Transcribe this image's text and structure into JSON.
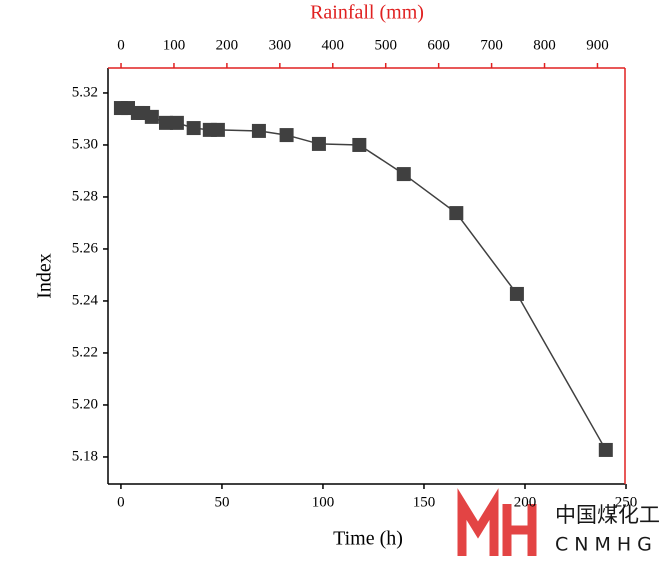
{
  "chart_data": {
    "type": "line",
    "xlabel": "Time (h)",
    "ylabel": "Index",
    "x2label": "Rainfall (mm)",
    "x": [
      0,
      3.5,
      8.4,
      11,
      15.3,
      22.3,
      27.7,
      36,
      44,
      48,
      68.3,
      82,
      98,
      118,
      140,
      166,
      196,
      240
    ],
    "series": [
      {
        "color": "#404040",
        "values": [
          5.3142,
          5.3142,
          5.3123,
          5.3123,
          5.3108,
          5.3085,
          5.3085,
          5.3065,
          5.3058,
          5.3058,
          5.3054,
          5.3038,
          5.3004,
          5.3,
          5.2888,
          5.2738,
          5.2427,
          5.1827
        ]
      }
    ],
    "xlim": [
      -6.4,
      249.5
    ],
    "xticks": [
      0,
      50,
      100,
      150,
      200,
      250
    ],
    "x2lim": [
      -24.6,
      952
    ],
    "x2ticks": [
      0,
      100,
      200,
      300,
      400,
      500,
      600,
      700,
      800,
      900
    ],
    "x2color": "#e02020",
    "ylim": [
      5.1696,
      5.3296
    ],
    "yticks": [
      {
        "value": 5.18,
        "label": "5.18"
      },
      {
        "value": 5.2,
        "label": "5.20"
      },
      {
        "value": 5.22,
        "label": "5.22"
      },
      {
        "value": 5.24,
        "label": "5.24"
      },
      {
        "value": 5.26,
        "label": "5.26"
      },
      {
        "value": 5.28,
        "label": "5.28"
      },
      {
        "value": 5.3,
        "label": "5.30"
      },
      {
        "value": 5.32,
        "label": "5.32"
      }
    ]
  },
  "watermark": {
    "text": "中国煤化工",
    "subtext": "CNMHG"
  }
}
